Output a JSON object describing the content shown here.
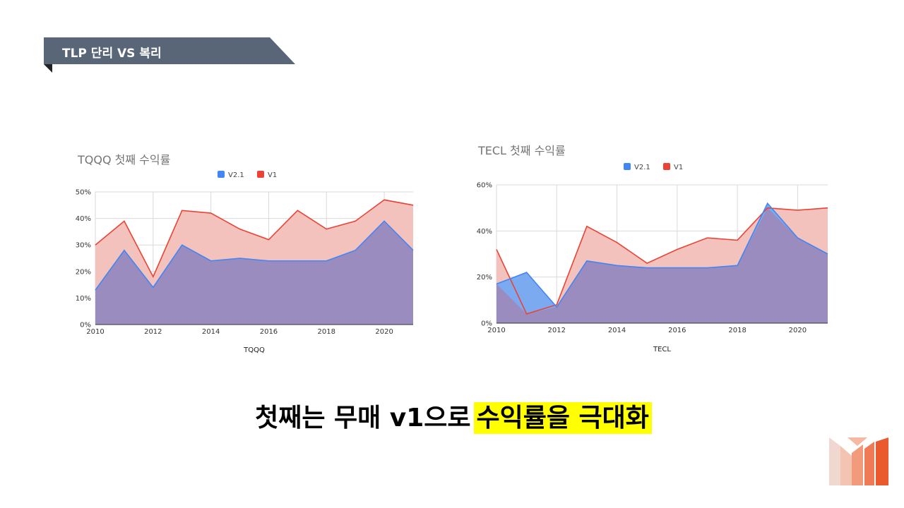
{
  "header": {
    "title": "TLP 단리 VS 복리"
  },
  "subtitle": {
    "plain": "첫째는 무매 v1으로",
    "highlight": "수익률을 극대화"
  },
  "colors": {
    "v21_line": "#4285f4",
    "v1_line": "#ea4335",
    "v1_fill": "#f4c2bd",
    "overlap_fill": "#9b8cbf",
    "v21_only_fill": "#7baaf0",
    "highlight": "#ffff00",
    "banner": "#586678"
  },
  "chart_data": [
    {
      "id": "tqqq",
      "type": "area",
      "title": "TQQQ 첫째 수익률",
      "xlabel": "TQQQ",
      "ylabel": "",
      "x": [
        2010,
        2011,
        2012,
        2013,
        2014,
        2015,
        2016,
        2017,
        2018,
        2019,
        2020,
        2021
      ],
      "xticks": [
        "2010",
        "2012",
        "2014",
        "2016",
        "2018",
        "2020"
      ],
      "xlim": [
        2010,
        2021
      ],
      "ylim": [
        0,
        50
      ],
      "yticks": [
        "0%",
        "10%",
        "20%",
        "30%",
        "40%",
        "50%"
      ],
      "series": [
        {
          "name": "V2.1",
          "color": "#4285f4",
          "values": [
            13,
            28,
            14,
            30,
            24,
            25,
            24,
            24,
            24,
            28,
            39,
            28
          ]
        },
        {
          "name": "V1",
          "color": "#ea4335",
          "values": [
            30,
            39,
            18,
            43,
            42,
            36,
            32,
            43,
            36,
            39,
            47,
            45
          ]
        }
      ],
      "legend": "top-center",
      "grid": true
    },
    {
      "id": "tecl",
      "type": "area",
      "title": "TECL 첫째 수익률",
      "xlabel": "TECL",
      "ylabel": "",
      "x": [
        2010,
        2011,
        2012,
        2013,
        2014,
        2015,
        2016,
        2017,
        2018,
        2019,
        2020,
        2021
      ],
      "xticks": [
        "2010",
        "2012",
        "2014",
        "2016",
        "2018",
        "2020"
      ],
      "xlim": [
        2010,
        2021
      ],
      "ylim": [
        0,
        60
      ],
      "yticks": [
        "0%",
        "20%",
        "40%",
        "60%"
      ],
      "series": [
        {
          "name": "V2.1",
          "color": "#4285f4",
          "values": [
            17,
            22,
            7,
            27,
            25,
            24,
            24,
            24,
            25,
            52,
            37,
            30
          ]
        },
        {
          "name": "V1",
          "color": "#ea4335",
          "values": [
            32,
            4,
            8,
            42,
            35,
            26,
            32,
            37,
            36,
            50,
            49,
            50
          ]
        }
      ],
      "legend": "top-center",
      "grid": true
    }
  ]
}
